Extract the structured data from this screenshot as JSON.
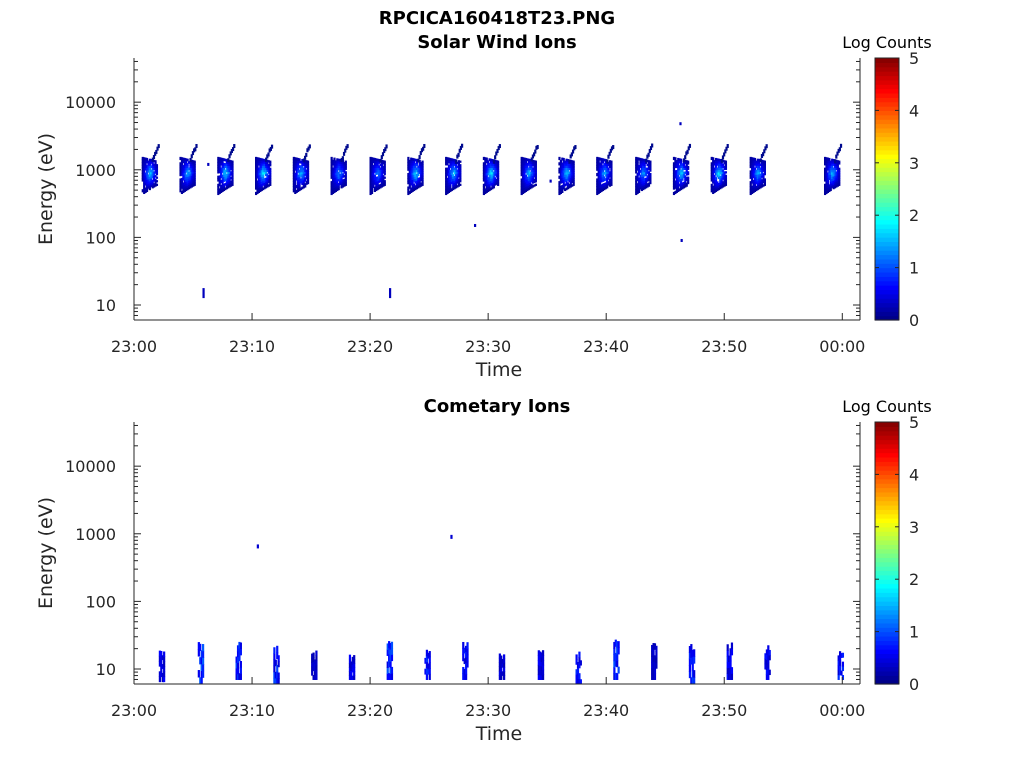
{
  "figure": {
    "filename": "RPCICA160418T23.PNG"
  },
  "chart_data": [
    {
      "type": "heatmap",
      "title": "Solar Wind Ions",
      "xlabel": "Time",
      "ylabel": "Energy (eV)",
      "x_ticks": [
        "23:00",
        "23:10",
        "23:20",
        "23:30",
        "23:40",
        "23:50",
        "00:00"
      ],
      "x_range_minutes": [
        0,
        61.5
      ],
      "y_ticks": [
        10,
        100,
        1000,
        10000
      ],
      "y_tick_labels": [
        "10",
        "100",
        "1000",
        "10000"
      ],
      "y_range": [
        6,
        45000
      ],
      "y_scale": "log",
      "colorbar": {
        "label": "Log Counts",
        "range": [
          0,
          5
        ],
        "ticks": [
          "0",
          "1",
          "2",
          "3",
          "4",
          "5"
        ],
        "colormap": "jet"
      },
      "bursts": [
        {
          "t": 1.2,
          "e": 650,
          "peak": 1.6
        },
        {
          "t": 4.4,
          "e": 650,
          "peak": 1.5
        },
        {
          "t": 7.6,
          "e": 650,
          "peak": 1.7
        },
        {
          "t": 10.8,
          "e": 650,
          "peak": 1.8
        },
        {
          "t": 14.0,
          "e": 650,
          "peak": 1.5
        },
        {
          "t": 17.2,
          "e": 650,
          "peak": 1.3
        },
        {
          "t": 20.5,
          "e": 650,
          "peak": 1.2
        },
        {
          "t": 23.7,
          "e": 650,
          "peak": 1.7
        },
        {
          "t": 26.9,
          "e": 650,
          "peak": 1.6
        },
        {
          "t": 30.1,
          "e": 650,
          "peak": 1.8
        },
        {
          "t": 33.3,
          "e": 650,
          "peak": 1.5
        },
        {
          "t": 36.5,
          "e": 650,
          "peak": 1.6
        },
        {
          "t": 39.7,
          "e": 650,
          "peak": 1.4
        },
        {
          "t": 43.0,
          "e": 650,
          "peak": 1.3
        },
        {
          "t": 46.2,
          "e": 650,
          "peak": 1.6
        },
        {
          "t": 49.4,
          "e": 650,
          "peak": 1.7
        },
        {
          "t": 52.7,
          "e": 650,
          "peak": 1.4
        },
        {
          "t": 59.0,
          "e": 650,
          "peak": 1.5
        }
      ],
      "isolated_points": [
        {
          "t": 5.8,
          "e": 15,
          "value": 0.3
        },
        {
          "t": 21.6,
          "e": 15,
          "value": 0.3
        },
        {
          "t": 28.8,
          "e": 150,
          "value": 0.3
        },
        {
          "t": 46.3,
          "e": 90,
          "value": 0.3
        },
        {
          "t": 46.2,
          "e": 4800,
          "value": 0.3
        },
        {
          "t": 6.2,
          "e": 1200,
          "value": 0.3
        },
        {
          "t": 35.2,
          "e": 680,
          "value": 0.3
        }
      ]
    },
    {
      "type": "heatmap",
      "title": "Cometary Ions",
      "xlabel": "Time",
      "ylabel": "Energy (eV)",
      "x_ticks": [
        "23:00",
        "23:10",
        "23:20",
        "23:30",
        "23:40",
        "23:50",
        "00:00"
      ],
      "x_range_minutes": [
        0,
        61.5
      ],
      "y_ticks": [
        10,
        100,
        1000,
        10000
      ],
      "y_tick_labels": [
        "10",
        "100",
        "1000",
        "10000"
      ],
      "y_range": [
        6,
        45000
      ],
      "y_scale": "log",
      "colorbar": {
        "label": "Log Counts",
        "range": [
          0,
          5
        ],
        "ticks": [
          "0",
          "1",
          "2",
          "3",
          "4",
          "5"
        ],
        "colormap": "jet"
      },
      "bursts": [
        {
          "t": 2.3,
          "e_low": 6.5,
          "e_high": 18,
          "peak": 0.5
        },
        {
          "t": 5.6,
          "e_low": 6,
          "e_high": 24,
          "peak": 0.9
        },
        {
          "t": 8.8,
          "e_low": 7,
          "e_high": 26,
          "peak": 0.8
        },
        {
          "t": 12.0,
          "e_low": 6,
          "e_high": 22,
          "peak": 0.8
        },
        {
          "t": 15.2,
          "e_low": 7,
          "e_high": 18,
          "peak": 0.3
        },
        {
          "t": 18.4,
          "e_low": 7,
          "e_high": 17,
          "peak": 0.5
        },
        {
          "t": 21.6,
          "e_low": 7,
          "e_high": 26,
          "peak": 0.9
        },
        {
          "t": 24.8,
          "e_low": 7,
          "e_high": 24,
          "peak": 0.7
        },
        {
          "t": 28.0,
          "e_low": 7,
          "e_high": 24,
          "peak": 0.6
        },
        {
          "t": 31.1,
          "e_low": 7,
          "e_high": 18,
          "peak": 0.4
        },
        {
          "t": 34.4,
          "e_low": 7,
          "e_high": 20,
          "peak": 0.5
        },
        {
          "t": 37.6,
          "e_low": 6,
          "e_high": 18,
          "peak": 0.7
        },
        {
          "t": 40.8,
          "e_low": 7,
          "e_high": 26,
          "peak": 0.9
        },
        {
          "t": 44.0,
          "e_low": 7,
          "e_high": 24,
          "peak": 0.3
        },
        {
          "t": 47.2,
          "e_low": 6,
          "e_high": 24,
          "peak": 0.8
        },
        {
          "t": 50.4,
          "e_low": 7,
          "e_high": 24,
          "peak": 0.6
        },
        {
          "t": 53.6,
          "e_low": 7,
          "e_high": 22,
          "peak": 0.6
        },
        {
          "t": 59.8,
          "e_low": 7,
          "e_high": 18,
          "peak": 0.7
        }
      ],
      "isolated_points": [
        {
          "t": 10.4,
          "e": 650,
          "value": 0.4
        },
        {
          "t": 26.8,
          "e": 900,
          "value": 0.4
        }
      ]
    }
  ]
}
